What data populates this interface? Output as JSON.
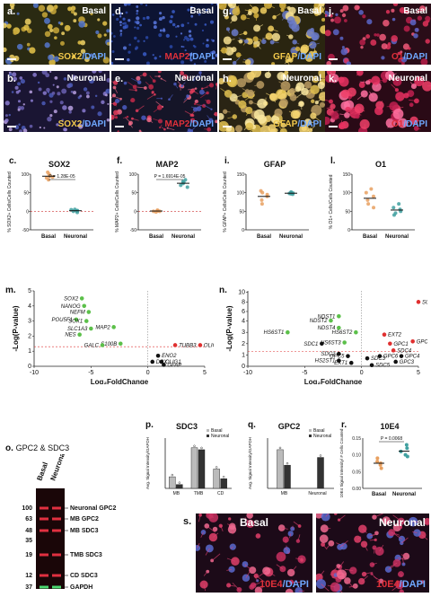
{
  "micrographs": [
    {
      "label": "a.",
      "cond": "Basal",
      "stain": [
        "SOX2",
        "/DAPI"
      ],
      "stainColor": "#f2c94c",
      "kind": "sox"
    },
    {
      "label": "d.",
      "cond": "Basal",
      "stain": [
        "MAP2",
        "/DAPI"
      ],
      "stainColor": "#e0303a",
      "kind": "blue"
    },
    {
      "label": "g.",
      "cond": "Basal",
      "stain": [
        "GFAP",
        "/DAPI"
      ],
      "stainColor": "#f2c94c",
      "kind": "gfap"
    },
    {
      "label": "j.",
      "cond": "Basal",
      "stain": [
        "O1",
        "/DAPI"
      ],
      "stainColor": "#e0303a",
      "kind": "o1"
    },
    {
      "label": "b.",
      "cond": "Neuronal",
      "stain": [
        "SOX2",
        "/DAPI"
      ],
      "stainColor": "#f2c94c",
      "kind": "sox2n"
    },
    {
      "label": "e.",
      "cond": "Neuronal",
      "stain": [
        "MAP2",
        "/DAPI"
      ],
      "stainColor": "#e0303a",
      "kind": "map2n"
    },
    {
      "label": "h.",
      "cond": "Neuronal",
      "stain": [
        "GFAP",
        "/DAPI"
      ],
      "stainColor": "#f2c94c",
      "kind": "gfapn"
    },
    {
      "label": "k.",
      "cond": "Neuronal",
      "stain": [
        "O1",
        "/DAPI"
      ],
      "stainColor": "#e0303a",
      "kind": "o1n"
    }
  ],
  "dapi_color": "#6fa8ff",
  "scatter_panels": [
    {
      "label": "c.",
      "title": "SOX2",
      "ylabel": "% SOX2+ Cells/Cells Counted",
      "yticks": [
        "100",
        "50",
        "0",
        "-50"
      ],
      "xcats": [
        "Basal",
        "Neuronal"
      ],
      "pval": "P = 1.28E-05"
    },
    {
      "label": "f.",
      "title": "MAP2",
      "ylabel": "% MAP2+ Cells/Cells Counted",
      "yticks": [
        "100",
        "50",
        "0",
        "-50"
      ],
      "xcats": [
        "Basal",
        "Neuronal"
      ],
      "pval": "P = 1.6914E-05"
    },
    {
      "label": "i.",
      "title": "GFAP",
      "ylabel": "% GFAP+ Cells/Cells Counted",
      "yticks": [
        "150",
        "100",
        "50",
        "0"
      ],
      "xcats": [
        "Basal",
        "Neuronal"
      ],
      "pval": ""
    },
    {
      "label": "l.",
      "title": "O1",
      "ylabel": "% O1+ Cells/Cells Counted",
      "yticks": [
        "150",
        "100",
        "50",
        "0"
      ],
      "xcats": [
        "Basal",
        "Neuronal"
      ],
      "pval": ""
    }
  ],
  "volcano_m": {
    "label": "m.",
    "ylabel": "-Log(P-value)",
    "xlabel": "Log₂FoldChange",
    "xticks": [
      "-10",
      "-5",
      "0",
      "5"
    ],
    "yticks": [
      "0",
      "1",
      "2",
      "3",
      "4",
      "5"
    ],
    "genes": [
      {
        "name": "SOX2",
        "fc": -5.8,
        "p": 4.5,
        "c": "g"
      },
      {
        "name": "NANOG",
        "fc": -5.6,
        "p": 4.0,
        "c": "g"
      },
      {
        "name": "NEFM",
        "fc": -5.2,
        "p": 3.6,
        "c": "g"
      },
      {
        "name": "POU5F1",
        "fc": -6.3,
        "p": 3.1,
        "c": "g"
      },
      {
        "name": "SOX1",
        "fc": -5.4,
        "p": 3.0,
        "c": "g"
      },
      {
        "name": "MAP2",
        "fc": -3.0,
        "p": 2.6,
        "c": "g"
      },
      {
        "name": "SLC1A3",
        "fc": -5.0,
        "p": 2.5,
        "c": "g"
      },
      {
        "name": "NES",
        "fc": -6.0,
        "p": 2.1,
        "c": "g"
      },
      {
        "name": "S100B",
        "fc": -2.4,
        "p": 1.5,
        "c": "g"
      },
      {
        "name": "GALC",
        "fc": -4.0,
        "p": 1.4,
        "c": "g"
      },
      {
        "name": "OLIG2",
        "fc": 4.6,
        "p": 1.4,
        "c": "r"
      },
      {
        "name": "TUBB3",
        "fc": 2.4,
        "p": 1.4,
        "c": "r"
      },
      {
        "name": "ENO2",
        "fc": 0.9,
        "p": 0.7,
        "c": "k"
      },
      {
        "name": "OLIG1",
        "fc": 1.2,
        "p": 0.3,
        "c": "k"
      },
      {
        "name": "DCX",
        "fc": 0.4,
        "p": 0.3,
        "c": "k"
      },
      {
        "name": "GFAP",
        "fc": 1.4,
        "p": 0.1,
        "c": "k"
      }
    ]
  },
  "volcano_n": {
    "label": "n.",
    "ylabel": "-Log(P-value)",
    "xlabel": "Log₂FoldChange",
    "xticks": [
      "-10",
      "-5",
      "0",
      "5"
    ],
    "yticks": [
      "0",
      "1",
      "2",
      "3",
      "4",
      "6",
      "8",
      "10"
    ],
    "genes": [
      {
        "name": "SULF2",
        "fc": 5.0,
        "p": 8.0,
        "c": "r"
      },
      {
        "name": "NDST1",
        "fc": -2.0,
        "p": 5.0,
        "c": "g"
      },
      {
        "name": "NDST2",
        "fc": -2.7,
        "p": 4.1,
        "c": "g"
      },
      {
        "name": "NDST4",
        "fc": -2.0,
        "p": 3.4,
        "c": "g"
      },
      {
        "name": "HS6ST1",
        "fc": -6.5,
        "p": 3.0,
        "c": "g"
      },
      {
        "name": "HS6ST2",
        "fc": -0.5,
        "p": 3.0,
        "c": "g"
      },
      {
        "name": "EXT2",
        "fc": 2.0,
        "p": 2.8,
        "c": "r"
      },
      {
        "name": "HS6ST3",
        "fc": -1.5,
        "p": 2.1,
        "c": "g"
      },
      {
        "name": "SDC1",
        "fc": -3.5,
        "p": 2.0,
        "c": "k"
      },
      {
        "name": "GPC1",
        "fc": 2.5,
        "p": 2.0,
        "c": "r"
      },
      {
        "name": "GPC2",
        "fc": 4.5,
        "p": 2.2,
        "c": "r"
      },
      {
        "name": "SDC4",
        "fc": 2.8,
        "p": 1.4,
        "c": "r"
      },
      {
        "name": "SDC2",
        "fc": -2.0,
        "p": 1.1,
        "c": "k"
      },
      {
        "name": "GPC5",
        "fc": -1.2,
        "p": 0.9,
        "c": "k"
      },
      {
        "name": "GPC4",
        "fc": 3.5,
        "p": 0.9,
        "c": "k"
      },
      {
        "name": "GPC6",
        "fc": 1.6,
        "p": 0.9,
        "c": "k"
      },
      {
        "name": "HS2ST1",
        "fc": -2.0,
        "p": 0.5,
        "c": "k"
      },
      {
        "name": "SDC3",
        "fc": 0.5,
        "p": 0.7,
        "c": "k"
      },
      {
        "name": "EXT1",
        "fc": -0.9,
        "p": 0.3,
        "c": "k"
      },
      {
        "name": "GPC3",
        "fc": 3.0,
        "p": 0.4,
        "c": "k"
      },
      {
        "name": "SDC5",
        "fc": 0.9,
        "p": 0.1,
        "c": "k"
      }
    ]
  },
  "blot": {
    "label": "o.",
    "title": "GPC2 & SDC3",
    "lanes": [
      "Basal",
      "Neuronal"
    ],
    "mw": [
      "100",
      "63",
      "48",
      "35",
      "19",
      "12",
      "37"
    ],
    "bands": [
      "Neuronal GPC2",
      "MB GPC2",
      "MB SDC3",
      "TMB SDC3",
      "CD SDC3",
      "GAPDH"
    ]
  },
  "bar_p": {
    "label": "p.",
    "title": "SDC3",
    "ylabel": "Avg. Signal Intensity/GAPDH",
    "categories": [
      "MB",
      "TMB",
      "CD"
    ],
    "legend": [
      "Basal",
      "Neuronal"
    ],
    "values": {
      "Basal": [
        0.6,
        2.1,
        1.0
      ],
      "Neuronal": [
        0.2,
        2.0,
        0.5
      ]
    }
  },
  "bar_q": {
    "label": "q.",
    "title": "GPC2",
    "ylabel": "Avg. Signal Intensity/GAPDH",
    "categories": [
      "MB",
      "Neuronal"
    ],
    "legend": [
      "Basal",
      "Neuronal"
    ],
    "values": {
      "Basal": [
        0.1,
        0
      ],
      "Neuronal": [
        0.06,
        0.08
      ]
    }
  },
  "scatter_r": {
    "label": "r.",
    "title": "10E4",
    "ylabel": "10E4 Signal Intensity/ # Cells Counted",
    "yticks": [
      "0.15",
      "0.10",
      "0.05",
      "0.00"
    ],
    "xcats": [
      "Basal",
      "Neuronal"
    ],
    "pval": "P = 0.0068"
  },
  "bottom_micro": [
    {
      "label": "s.",
      "cond": "Basal",
      "stain": [
        "10E4",
        "/DAPI"
      ]
    },
    {
      "label": "",
      "cond": "Neuronal",
      "stain": [
        "10E4",
        "/DAPI"
      ]
    }
  ]
}
